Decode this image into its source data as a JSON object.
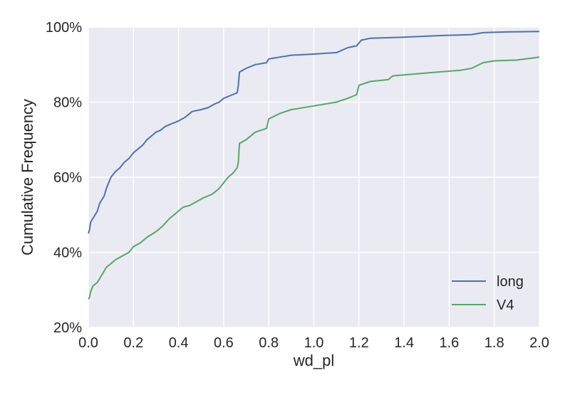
{
  "chart_data": {
    "type": "line",
    "title": "",
    "xlabel": "wd_pl",
    "ylabel": "Cumulative Frequency",
    "xlim": [
      0.0,
      2.0
    ],
    "ylim": [
      0.2,
      1.0
    ],
    "x_ticks": [
      "0.0",
      "0.2",
      "0.4",
      "0.6",
      "0.8",
      "1.0",
      "1.2",
      "1.4",
      "1.6",
      "1.8",
      "2.0"
    ],
    "y_ticks": [
      "20%",
      "40%",
      "60%",
      "80%",
      "100%"
    ],
    "grid": true,
    "legend": "lower-right",
    "series": [
      {
        "name": "long",
        "color": "#4c72b0",
        "points": [
          [
            0.0,
            0.45
          ],
          [
            0.005,
            0.46
          ],
          [
            0.01,
            0.48
          ],
          [
            0.02,
            0.49
          ],
          [
            0.03,
            0.5
          ],
          [
            0.04,
            0.51
          ],
          [
            0.05,
            0.53
          ],
          [
            0.06,
            0.54
          ],
          [
            0.07,
            0.55
          ],
          [
            0.08,
            0.57
          ],
          [
            0.09,
            0.585
          ],
          [
            0.1,
            0.6
          ],
          [
            0.12,
            0.615
          ],
          [
            0.14,
            0.625
          ],
          [
            0.16,
            0.64
          ],
          [
            0.18,
            0.65
          ],
          [
            0.2,
            0.665
          ],
          [
            0.22,
            0.675
          ],
          [
            0.24,
            0.685
          ],
          [
            0.26,
            0.7
          ],
          [
            0.28,
            0.71
          ],
          [
            0.3,
            0.72
          ],
          [
            0.32,
            0.725
          ],
          [
            0.34,
            0.735
          ],
          [
            0.36,
            0.74
          ],
          [
            0.38,
            0.745
          ],
          [
            0.4,
            0.75
          ],
          [
            0.43,
            0.76
          ],
          [
            0.46,
            0.775
          ],
          [
            0.5,
            0.78
          ],
          [
            0.53,
            0.785
          ],
          [
            0.56,
            0.795
          ],
          [
            0.58,
            0.8
          ],
          [
            0.6,
            0.81
          ],
          [
            0.62,
            0.815
          ],
          [
            0.64,
            0.82
          ],
          [
            0.66,
            0.825
          ],
          [
            0.665,
            0.845
          ],
          [
            0.67,
            0.88
          ],
          [
            0.7,
            0.89
          ],
          [
            0.74,
            0.9
          ],
          [
            0.79,
            0.905
          ],
          [
            0.8,
            0.915
          ],
          [
            0.85,
            0.92
          ],
          [
            0.9,
            0.925
          ],
          [
            1.0,
            0.928
          ],
          [
            1.05,
            0.93
          ],
          [
            1.1,
            0.932
          ],
          [
            1.15,
            0.945
          ],
          [
            1.19,
            0.95
          ],
          [
            1.21,
            0.965
          ],
          [
            1.25,
            0.97
          ],
          [
            1.4,
            0.973
          ],
          [
            1.55,
            0.977
          ],
          [
            1.7,
            0.98
          ],
          [
            1.75,
            0.985
          ],
          [
            1.85,
            0.987
          ],
          [
            2.0,
            0.988
          ]
        ]
      },
      {
        "name": "V4",
        "color": "#55a868",
        "points": [
          [
            0.0,
            0.275
          ],
          [
            0.005,
            0.28
          ],
          [
            0.01,
            0.295
          ],
          [
            0.02,
            0.31
          ],
          [
            0.04,
            0.32
          ],
          [
            0.06,
            0.34
          ],
          [
            0.08,
            0.36
          ],
          [
            0.1,
            0.37
          ],
          [
            0.12,
            0.38
          ],
          [
            0.15,
            0.39
          ],
          [
            0.18,
            0.4
          ],
          [
            0.2,
            0.415
          ],
          [
            0.23,
            0.425
          ],
          [
            0.26,
            0.44
          ],
          [
            0.3,
            0.455
          ],
          [
            0.33,
            0.47
          ],
          [
            0.36,
            0.49
          ],
          [
            0.38,
            0.5
          ],
          [
            0.4,
            0.51
          ],
          [
            0.42,
            0.52
          ],
          [
            0.45,
            0.525
          ],
          [
            0.48,
            0.535
          ],
          [
            0.51,
            0.545
          ],
          [
            0.55,
            0.555
          ],
          [
            0.58,
            0.57
          ],
          [
            0.6,
            0.585
          ],
          [
            0.62,
            0.6
          ],
          [
            0.64,
            0.61
          ],
          [
            0.66,
            0.625
          ],
          [
            0.665,
            0.64
          ],
          [
            0.67,
            0.69
          ],
          [
            0.7,
            0.7
          ],
          [
            0.74,
            0.72
          ],
          [
            0.79,
            0.73
          ],
          [
            0.8,
            0.755
          ],
          [
            0.85,
            0.77
          ],
          [
            0.9,
            0.78
          ],
          [
            1.0,
            0.79
          ],
          [
            1.05,
            0.795
          ],
          [
            1.1,
            0.8
          ],
          [
            1.15,
            0.81
          ],
          [
            1.19,
            0.82
          ],
          [
            1.2,
            0.845
          ],
          [
            1.25,
            0.855
          ],
          [
            1.33,
            0.86
          ],
          [
            1.35,
            0.87
          ],
          [
            1.45,
            0.875
          ],
          [
            1.55,
            0.88
          ],
          [
            1.65,
            0.885
          ],
          [
            1.7,
            0.89
          ],
          [
            1.75,
            0.905
          ],
          [
            1.8,
            0.91
          ],
          [
            1.9,
            0.912
          ],
          [
            2.0,
            0.92
          ]
        ]
      }
    ]
  }
}
